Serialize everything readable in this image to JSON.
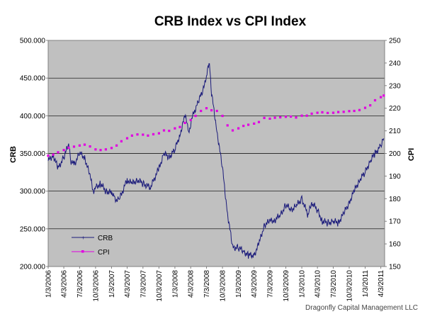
{
  "chart_data": {
    "type": "line",
    "title": "CRB Index  vs CPI Index",
    "ylabel_left": "CRB",
    "ylabel_right": "CPI",
    "ylim_left": [
      200,
      500
    ],
    "ylim_right": [
      150,
      250
    ],
    "left_ticks": [
      "200.000",
      "250.000",
      "300.000",
      "350.000",
      "400.000",
      "450.000",
      "500.000"
    ],
    "right_ticks": [
      "150",
      "160",
      "170",
      "180",
      "190",
      "200",
      "210",
      "220",
      "230",
      "240",
      "250"
    ],
    "x_ticks": [
      "1/3/2006",
      "4/3/2006",
      "7/3/2006",
      "10/3/2006",
      "1/3/2007",
      "4/3/2007",
      "7/3/2007",
      "10/3/2007",
      "1/3/2008",
      "4/3/2008",
      "7/3/2008",
      "10/3/2008",
      "1/3/2009",
      "4/3/2009",
      "7/3/2009",
      "10/3/2009",
      "1/3/2010",
      "4/3/2010",
      "7/3/2010",
      "10/3/2010",
      "1/3/2011",
      "4/3/2011"
    ],
    "grid": true,
    "legend_position": "bottom-left",
    "background_color": "#c0c0c0",
    "series": [
      {
        "name": "CRB",
        "axis": "left",
        "color": "#1a1a7a",
        "x": [
          "2006-01-03",
          "2006-02-01",
          "2006-03-01",
          "2006-04-03",
          "2006-05-01",
          "2006-05-15",
          "2006-06-01",
          "2006-07-03",
          "2006-08-01",
          "2006-09-01",
          "2006-09-20",
          "2006-10-03",
          "2006-11-01",
          "2006-12-01",
          "2007-01-03",
          "2007-01-20",
          "2007-02-15",
          "2007-04-03",
          "2007-05-01",
          "2007-06-01",
          "2007-07-03",
          "2007-08-15",
          "2007-10-03",
          "2007-11-01",
          "2007-12-01",
          "2008-01-03",
          "2008-02-01",
          "2008-03-01",
          "2008-03-25",
          "2008-04-15",
          "2008-05-15",
          "2008-06-15",
          "2008-07-03",
          "2008-07-20",
          "2008-08-01",
          "2008-09-01",
          "2008-10-03",
          "2008-11-01",
          "2008-12-01",
          "2009-01-03",
          "2009-02-01",
          "2009-03-01",
          "2009-04-03",
          "2009-05-01",
          "2009-06-01",
          "2009-07-03",
          "2009-08-01",
          "2009-09-01",
          "2009-10-03",
          "2009-11-01",
          "2009-12-01",
          "2010-01-03",
          "2010-02-08",
          "2010-03-01",
          "2010-04-03",
          "2010-05-01",
          "2010-06-01",
          "2010-07-03",
          "2010-08-01",
          "2010-09-01",
          "2010-10-03",
          "2010-11-01",
          "2010-12-01",
          "2011-01-03",
          "2011-02-01",
          "2011-03-01",
          "2011-04-03",
          "2011-04-20"
        ],
        "values": [
          340,
          348,
          330,
          345,
          362,
          340,
          335,
          350,
          345,
          320,
          300,
          305,
          310,
          300,
          298,
          290,
          288,
          315,
          310,
          315,
          310,
          305,
          330,
          350,
          345,
          355,
          375,
          400,
          380,
          400,
          418,
          435,
          455,
          470,
          430,
          380,
          330,
          270,
          225,
          225,
          220,
          215,
          215,
          230,
          255,
          260,
          262,
          268,
          282,
          275,
          280,
          290,
          268,
          285,
          275,
          260,
          258,
          260,
          258,
          270,
          285,
          300,
          315,
          325,
          340,
          350,
          360,
          370
        ]
      },
      {
        "name": "CPI",
        "axis": "right",
        "color": "#e100e1",
        "x": [
          "2006-01-03",
          "2006-02-01",
          "2006-03-01",
          "2006-04-03",
          "2006-05-01",
          "2006-06-01",
          "2006-07-03",
          "2006-08-01",
          "2006-09-01",
          "2006-10-03",
          "2006-11-01",
          "2006-12-01",
          "2007-01-03",
          "2007-02-01",
          "2007-03-01",
          "2007-04-03",
          "2007-05-01",
          "2007-06-01",
          "2007-07-03",
          "2007-08-01",
          "2007-09-01",
          "2007-10-03",
          "2007-11-01",
          "2007-12-01",
          "2008-01-03",
          "2008-02-01",
          "2008-03-01",
          "2008-04-03",
          "2008-05-01",
          "2008-06-01",
          "2008-07-03",
          "2008-08-01",
          "2008-09-01",
          "2008-10-03",
          "2008-11-01",
          "2008-12-01",
          "2009-01-03",
          "2009-02-01",
          "2009-03-01",
          "2009-04-03",
          "2009-05-01",
          "2009-06-01",
          "2009-07-03",
          "2009-08-01",
          "2009-09-01",
          "2009-10-03",
          "2009-11-01",
          "2009-12-01",
          "2010-01-03",
          "2010-02-01",
          "2010-03-01",
          "2010-04-03",
          "2010-05-01",
          "2010-06-01",
          "2010-07-03",
          "2010-08-01",
          "2010-09-01",
          "2010-10-03",
          "2010-11-01",
          "2010-12-01",
          "2011-01-03",
          "2011-02-01",
          "2011-03-01",
          "2011-04-03",
          "2011-04-20"
        ],
        "values": [
          199.0,
          199.5,
          200.5,
          201.5,
          202.5,
          203.0,
          203.5,
          203.9,
          203.1,
          201.8,
          201.5,
          201.8,
          202.4,
          203.5,
          205.4,
          206.7,
          207.9,
          208.4,
          208.3,
          207.9,
          208.5,
          208.9,
          210.2,
          210.0,
          211.1,
          211.7,
          213.5,
          214.8,
          216.6,
          218.8,
          220.0,
          219.1,
          218.8,
          216.6,
          212.4,
          210.2,
          211.1,
          212.2,
          212.7,
          213.2,
          213.9,
          215.7,
          215.4,
          215.8,
          216.0,
          216.2,
          216.3,
          215.9,
          216.7,
          216.7,
          217.6,
          218.0,
          218.2,
          217.9,
          218.0,
          218.3,
          218.4,
          218.7,
          218.8,
          219.2,
          220.2,
          221.3,
          223.5,
          224.9,
          225.6
        ]
      }
    ],
    "annotation": "Dragonfly Capital Management LLC"
  }
}
